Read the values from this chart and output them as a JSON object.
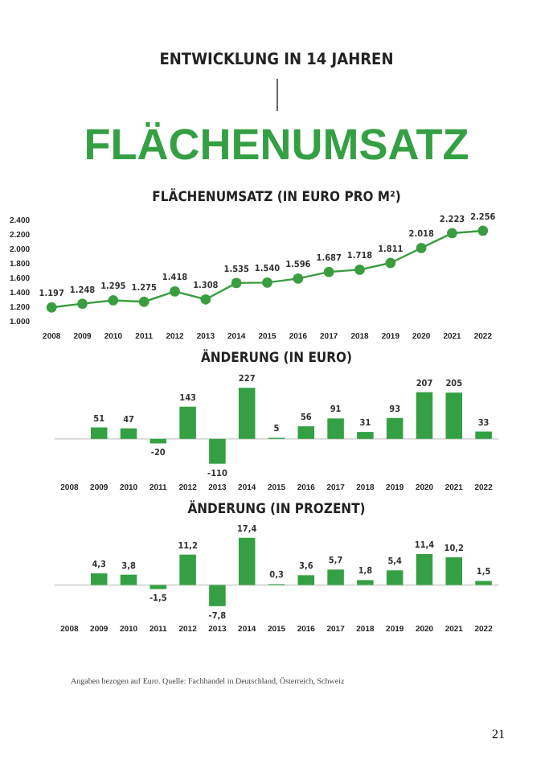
{
  "chart_data": [
    {
      "type": "other",
      "subtitle": "ENTWICKLUNG IN 14 JAHREN",
      "title": "FLÄCHENUMSATZ"
    },
    {
      "type": "line",
      "title": "FLÄCHENUMSATZ (IN EURO PRO M²)",
      "categories": [
        "2008",
        "2009",
        "2010",
        "2011",
        "2012",
        "2013",
        "2014",
        "2015",
        "2016",
        "2017",
        "2018",
        "2019",
        "2020",
        "2021",
        "2022"
      ],
      "series": [
        {
          "color": "#3a9d3f",
          "values": [
            1197,
            1248,
            1295,
            1275,
            1418,
            1308,
            1535,
            1540,
            1596,
            1687,
            1718,
            1811,
            2018,
            2223,
            2256
          ],
          "value_labels": [
            "1.197",
            "1.248",
            "1.295",
            "1.275",
            "1.418",
            "1.308",
            "1.535",
            "1.540",
            "1.596",
            "1.687",
            "1.718",
            "1.811",
            "2.018",
            "2.223",
            "2.256"
          ]
        }
      ],
      "ylim": [
        1000,
        2400
      ],
      "yticks": [
        {
          "value": 1000,
          "label": "1.000"
        },
        {
          "value": 1200,
          "label": "1.200"
        },
        {
          "value": 1400,
          "label": "1.400"
        },
        {
          "value": 1600,
          "label": "1.600"
        },
        {
          "value": 1800,
          "label": "1.800"
        },
        {
          "value": 2000,
          "label": "2.000"
        },
        {
          "value": 2200,
          "label": "2.200"
        },
        {
          "value": 2400,
          "label": "2.400"
        }
      ],
      "marker": "circle"
    },
    {
      "type": "bar",
      "title": "ÄNDERUNG (IN EURO)",
      "categories": [
        "2008",
        "2009",
        "2010",
        "2011",
        "2012",
        "2013",
        "2014",
        "2015",
        "2016",
        "2017",
        "2018",
        "2019",
        "2020",
        "2021",
        "2022"
      ],
      "values": [
        null,
        51,
        47,
        -20,
        143,
        -110,
        227,
        5,
        56,
        91,
        31,
        93,
        207,
        205,
        33
      ],
      "color": "#34a043",
      "data_labels": true,
      "tick_labels": "x",
      "ref_lines": [
        {
          "axis": "y",
          "value": 0,
          "color": "#d9d9d9"
        }
      ]
    },
    {
      "type": "bar",
      "title": "ÄNDERUNG (IN PROZENT)",
      "categories": [
        "2008",
        "2009",
        "2010",
        "2011",
        "2012",
        "2013",
        "2014",
        "2015",
        "2016",
        "2017",
        "2018",
        "2019",
        "2020",
        "2021",
        "2022"
      ],
      "values": [
        null,
        4.3,
        3.8,
        -1.5,
        11.2,
        -7.8,
        17.4,
        0.3,
        3.6,
        5.7,
        1.8,
        5.4,
        11.4,
        10.2,
        1.5
      ],
      "value_labels": [
        null,
        "4,3",
        "3,8",
        "-1,5",
        "11,2",
        "-7,8",
        "17,4",
        "0,3",
        "3,6",
        "5,7",
        "1,8",
        "5,4",
        "11,4",
        "10,2",
        "1,5"
      ],
      "color": "#34a043",
      "tick_labels": "x",
      "ref_lines": [
        {
          "axis": "y",
          "value": 0,
          "color": "#d9d9d9"
        }
      ],
      "annotations": [
        "Angaben bezogen auf Euro. Quelle: Fachhandel in Deutschland, Österreich, Schweiz",
        "21"
      ]
    }
  ]
}
